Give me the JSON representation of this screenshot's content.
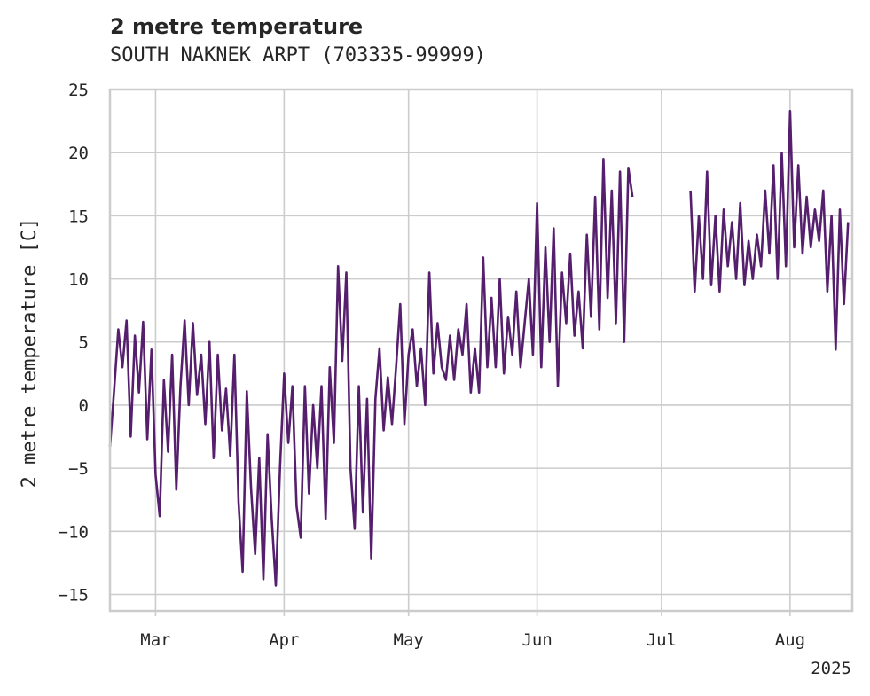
{
  "chart_data": {
    "type": "line",
    "title": "2 metre temperature",
    "subtitle": "SOUTH NAKNEK ARPT (703335-99999)",
    "ylabel": "2 metre temperature [C]",
    "xlabel": "",
    "x_offset_label": "2025",
    "ylim": [
      -16.3,
      25
    ],
    "xlim": [
      "2025-02-18",
      "2025-08-16"
    ],
    "yticks": [
      -15,
      -10,
      -5,
      0,
      5,
      10,
      15,
      20,
      25
    ],
    "xticks": [
      {
        "date": "2025-03-01",
        "label": "Mar"
      },
      {
        "date": "2025-04-01",
        "label": "Apr"
      },
      {
        "date": "2025-05-01",
        "label": "May"
      },
      {
        "date": "2025-06-01",
        "label": "Jun"
      },
      {
        "date": "2025-07-01",
        "label": "Jul"
      },
      {
        "date": "2025-08-01",
        "label": "Aug"
      }
    ],
    "grid": true,
    "colors": {
      "line": "#561f6e",
      "grid": "#cccccc",
      "text": "#262626"
    },
    "series": [
      {
        "values": [
          [
            "2025-02-18",
            -3.3
          ],
          [
            "2025-02-19",
            1.2
          ],
          [
            "2025-02-20",
            6.0
          ],
          [
            "2025-02-21",
            3.0
          ],
          [
            "2025-02-22",
            6.7
          ],
          [
            "2025-02-23",
            -2.5
          ],
          [
            "2025-02-24",
            5.5
          ],
          [
            "2025-02-25",
            1.0
          ],
          [
            "2025-02-26",
            6.6
          ],
          [
            "2025-02-27",
            -2.7
          ],
          [
            "2025-02-28",
            4.4
          ],
          [
            "2025-03-01",
            -5.5
          ],
          [
            "2025-03-02",
            -8.8
          ],
          [
            "2025-03-03",
            2.0
          ],
          [
            "2025-03-04",
            -3.7
          ],
          [
            "2025-03-05",
            4.0
          ],
          [
            "2025-03-06",
            -6.7
          ],
          [
            "2025-03-07",
            1.5
          ],
          [
            "2025-03-08",
            6.7
          ],
          [
            "2025-03-09",
            0.0
          ],
          [
            "2025-03-10",
            6.5
          ],
          [
            "2025-03-11",
            0.8
          ],
          [
            "2025-03-12",
            4.0
          ],
          [
            "2025-03-13",
            -1.5
          ],
          [
            "2025-03-14",
            5.0
          ],
          [
            "2025-03-15",
            -4.2
          ],
          [
            "2025-03-16",
            4.0
          ],
          [
            "2025-03-17",
            -2.0
          ],
          [
            "2025-03-18",
            1.3
          ],
          [
            "2025-03-19",
            -4.0
          ],
          [
            "2025-03-20",
            4.0
          ],
          [
            "2025-03-21",
            -7.7
          ],
          [
            "2025-03-22",
            -13.2
          ],
          [
            "2025-03-23",
            1.1
          ],
          [
            "2025-03-24",
            -6.5
          ],
          [
            "2025-03-25",
            -11.8
          ],
          [
            "2025-03-26",
            -4.2
          ],
          [
            "2025-03-27",
            -13.8
          ],
          [
            "2025-03-28",
            -2.3
          ],
          [
            "2025-03-29",
            -9.0
          ],
          [
            "2025-03-30",
            -14.3
          ],
          [
            "2025-03-31",
            -5.0
          ],
          [
            "2025-04-01",
            2.5
          ],
          [
            "2025-04-02",
            -3.0
          ],
          [
            "2025-04-03",
            1.5
          ],
          [
            "2025-04-04",
            -8.0
          ],
          [
            "2025-04-05",
            -10.5
          ],
          [
            "2025-04-06",
            1.5
          ],
          [
            "2025-04-07",
            -7.0
          ],
          [
            "2025-04-08",
            0.0
          ],
          [
            "2025-04-09",
            -5.0
          ],
          [
            "2025-04-10",
            1.5
          ],
          [
            "2025-04-11",
            -9.0
          ],
          [
            "2025-04-12",
            3.0
          ],
          [
            "2025-04-13",
            -3.0
          ],
          [
            "2025-04-14",
            11.0
          ],
          [
            "2025-04-15",
            3.5
          ],
          [
            "2025-04-16",
            10.5
          ],
          [
            "2025-04-17",
            -5.0
          ],
          [
            "2025-04-18",
            -9.8
          ],
          [
            "2025-04-19",
            1.5
          ],
          [
            "2025-04-20",
            -8.5
          ],
          [
            "2025-04-21",
            0.5
          ],
          [
            "2025-04-22",
            -12.2
          ],
          [
            "2025-04-23",
            0.5
          ],
          [
            "2025-04-24",
            4.5
          ],
          [
            "2025-04-25",
            -2.0
          ],
          [
            "2025-04-26",
            2.2
          ],
          [
            "2025-04-27",
            -1.5
          ],
          [
            "2025-04-28",
            3.0
          ],
          [
            "2025-04-29",
            8.0
          ],
          [
            "2025-04-30",
            -1.5
          ],
          [
            "2025-05-01",
            4.0
          ],
          [
            "2025-05-02",
            6.0
          ],
          [
            "2025-05-03",
            1.5
          ],
          [
            "2025-05-04",
            4.5
          ],
          [
            "2025-05-05",
            0.0
          ],
          [
            "2025-05-06",
            10.5
          ],
          [
            "2025-05-07",
            2.5
          ],
          [
            "2025-05-08",
            6.5
          ],
          [
            "2025-05-09",
            3.0
          ],
          [
            "2025-05-10",
            2.0
          ],
          [
            "2025-05-11",
            5.5
          ],
          [
            "2025-05-12",
            2.0
          ],
          [
            "2025-05-13",
            6.0
          ],
          [
            "2025-05-14",
            4.0
          ],
          [
            "2025-05-15",
            8.0
          ],
          [
            "2025-05-16",
            1.0
          ],
          [
            "2025-05-17",
            4.5
          ],
          [
            "2025-05-18",
            1.0
          ],
          [
            "2025-05-19",
            11.7
          ],
          [
            "2025-05-20",
            3.0
          ],
          [
            "2025-05-21",
            8.5
          ],
          [
            "2025-05-22",
            3.0
          ],
          [
            "2025-05-23",
            10.0
          ],
          [
            "2025-05-24",
            2.5
          ],
          [
            "2025-05-25",
            7.0
          ],
          [
            "2025-05-26",
            4.0
          ],
          [
            "2025-05-27",
            9.0
          ],
          [
            "2025-05-28",
            3.0
          ],
          [
            "2025-05-29",
            6.5
          ],
          [
            "2025-05-30",
            10.0
          ],
          [
            "2025-05-31",
            4.0
          ],
          [
            "2025-06-01",
            16.0
          ],
          [
            "2025-06-02",
            3.0
          ],
          [
            "2025-06-03",
            12.5
          ],
          [
            "2025-06-04",
            5.0
          ],
          [
            "2025-06-05",
            14.0
          ],
          [
            "2025-06-06",
            1.5
          ],
          [
            "2025-06-07",
            10.5
          ],
          [
            "2025-06-08",
            6.5
          ],
          [
            "2025-06-09",
            12.0
          ],
          [
            "2025-06-10",
            5.5
          ],
          [
            "2025-06-11",
            9.0
          ],
          [
            "2025-06-12",
            4.5
          ],
          [
            "2025-06-13",
            13.5
          ],
          [
            "2025-06-14",
            7.0
          ],
          [
            "2025-06-15",
            16.5
          ],
          [
            "2025-06-16",
            6.0
          ],
          [
            "2025-06-17",
            19.5
          ],
          [
            "2025-06-18",
            8.5
          ],
          [
            "2025-06-19",
            17.0
          ],
          [
            "2025-06-20",
            6.5
          ],
          [
            "2025-06-21",
            18.5
          ],
          [
            "2025-06-22",
            5.0
          ],
          [
            "2025-06-23",
            18.8
          ],
          [
            "2025-06-24",
            16.5
          ],
          null,
          [
            "2025-07-08",
            17.0
          ],
          [
            "2025-07-09",
            9.0
          ],
          [
            "2025-07-10",
            15.0
          ],
          [
            "2025-07-11",
            10.0
          ],
          [
            "2025-07-12",
            18.5
          ],
          [
            "2025-07-13",
            9.5
          ],
          [
            "2025-07-14",
            15.0
          ],
          [
            "2025-07-15",
            9.0
          ],
          [
            "2025-07-16",
            15.5
          ],
          [
            "2025-07-17",
            11.0
          ],
          [
            "2025-07-18",
            14.5
          ],
          [
            "2025-07-19",
            10.0
          ],
          [
            "2025-07-20",
            16.0
          ],
          [
            "2025-07-21",
            9.5
          ],
          [
            "2025-07-22",
            13.0
          ],
          [
            "2025-07-23",
            10.0
          ],
          [
            "2025-07-24",
            13.5
          ],
          [
            "2025-07-25",
            11.0
          ],
          [
            "2025-07-26",
            17.0
          ],
          [
            "2025-07-27",
            12.0
          ],
          [
            "2025-07-28",
            19.0
          ],
          [
            "2025-07-29",
            10.0
          ],
          [
            "2025-07-30",
            20.0
          ],
          [
            "2025-07-31",
            11.0
          ],
          [
            "2025-08-01",
            23.3
          ],
          [
            "2025-08-02",
            12.5
          ],
          [
            "2025-08-03",
            19.0
          ],
          [
            "2025-08-04",
            12.0
          ],
          [
            "2025-08-05",
            16.5
          ],
          [
            "2025-08-06",
            12.5
          ],
          [
            "2025-08-07",
            15.5
          ],
          [
            "2025-08-08",
            13.0
          ],
          [
            "2025-08-09",
            17.0
          ],
          [
            "2025-08-10",
            9.0
          ],
          [
            "2025-08-11",
            15.0
          ],
          [
            "2025-08-12",
            4.4
          ],
          [
            "2025-08-13",
            15.5
          ],
          [
            "2025-08-14",
            8.0
          ],
          [
            "2025-08-15",
            14.5
          ]
        ]
      }
    ]
  }
}
